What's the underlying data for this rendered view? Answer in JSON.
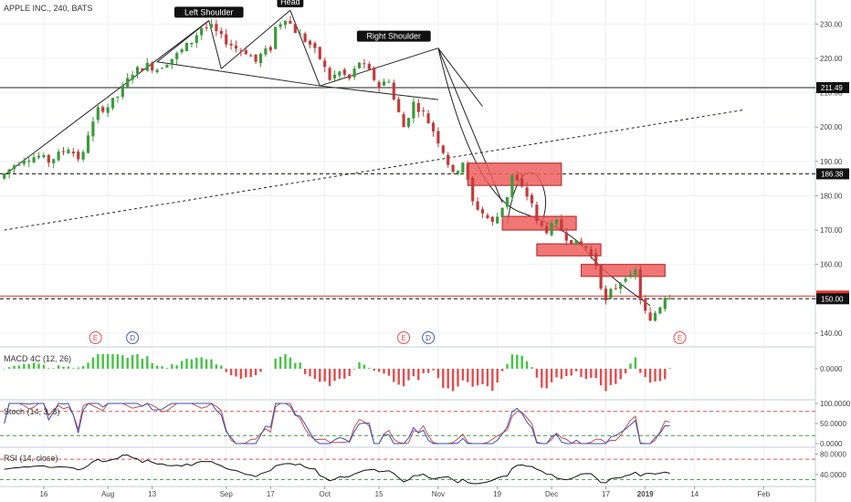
{
  "symbol_title": "APPLE INC., 240, BATS",
  "colors": {
    "up": "#3c9a3c",
    "down": "#c23b3b",
    "macd_up": "#43c443",
    "macd_down": "#e24c4c",
    "stoch_k": "#3b4fb3",
    "stoch_d": "#c05050",
    "zone": "#ee5e5e",
    "level": "#222222"
  },
  "chart_data": {
    "type": "candlestick",
    "ylim": [
      136,
      237
    ],
    "price_ticks": [
      "230.00",
      "220.00",
      "210.00",
      "200.00",
      "190.00",
      "180.00",
      "170.00",
      "160.00",
      "150.00",
      "140.00"
    ],
    "x_ticks": [
      "16",
      "Aug",
      "13",
      "Sep",
      "17",
      "Oct",
      "15",
      "Nov",
      "19",
      "Dec",
      "17",
      "2019",
      "14",
      "Feb"
    ],
    "price_path": [
      [
        0,
        185
      ],
      [
        3,
        189
      ],
      [
        5,
        191
      ],
      [
        8,
        191.5
      ],
      [
        10,
        190
      ],
      [
        14,
        194
      ],
      [
        16,
        191
      ],
      [
        17,
        192
      ],
      [
        17.6,
        197
      ],
      [
        19,
        201
      ],
      [
        20,
        205
      ],
      [
        22,
        206
      ],
      [
        24,
        209
      ],
      [
        27,
        216
      ],
      [
        30,
        218
      ],
      [
        32,
        217
      ],
      [
        36,
        221
      ],
      [
        39,
        225
      ],
      [
        41,
        229
      ],
      [
        43,
        229
      ],
      [
        45,
        226
      ],
      [
        48,
        223
      ],
      [
        50,
        222
      ],
      [
        52,
        219
      ],
      [
        53,
        221
      ],
      [
        55,
        223
      ],
      [
        56,
        229
      ],
      [
        58,
        232
      ],
      [
        60,
        228
      ],
      [
        63,
        224
      ],
      [
        65,
        220
      ],
      [
        67,
        214
      ],
      [
        69,
        216
      ],
      [
        71,
        214
      ],
      [
        73,
        219
      ],
      [
        75,
        216
      ],
      [
        77,
        212
      ],
      [
        79,
        214
      ],
      [
        80,
        208
      ],
      [
        82,
        200
      ],
      [
        84,
        207
      ],
      [
        86,
        204
      ],
      [
        88,
        199
      ],
      [
        90,
        193
      ],
      [
        92,
        186
      ],
      [
        94,
        190
      ],
      [
        96,
        178
      ],
      [
        98,
        175
      ],
      [
        100,
        172
      ],
      [
        101,
        174
      ],
      [
        103,
        180
      ],
      [
        104,
        186
      ],
      [
        106,
        182
      ],
      [
        108,
        178
      ],
      [
        109,
        172
      ],
      [
        111,
        170
      ],
      [
        113,
        172
      ],
      [
        115,
        168
      ],
      [
        117,
        166
      ],
      [
        119,
        165
      ],
      [
        121,
        160
      ],
      [
        122,
        154
      ],
      [
        123,
        149
      ],
      [
        124,
        152
      ],
      [
        126,
        155
      ],
      [
        127,
        157
      ],
      [
        128,
        156
      ],
      [
        129,
        158
      ],
      [
        130,
        150
      ],
      [
        131,
        146
      ],
      [
        132,
        143
      ],
      [
        133,
        146
      ],
      [
        134,
        148
      ],
      [
        135,
        151
      ]
    ],
    "patterns": [
      {
        "label": "Left Shoulder",
        "bar": 41.5,
        "price": 230
      },
      {
        "label": "Head",
        "bar": 58,
        "price": 233
      },
      {
        "label": "Right Shoulder",
        "bar": 79,
        "price": 223
      }
    ],
    "horizontal_levels": [
      {
        "value": 211.49,
        "label": "211.49",
        "style": "solid",
        "color": "#222222"
      },
      {
        "value": 186.38,
        "label": "186.38",
        "style": "dashed",
        "color": "#222222"
      },
      {
        "value": 150.8,
        "label": "150.80",
        "style": "solid",
        "color": "#e53935"
      },
      {
        "value": 150.0,
        "label": "150.00",
        "style": "dashed",
        "color": "#222222"
      }
    ],
    "zones": [
      {
        "bar0": 94,
        "bar1": 113,
        "top": 189.5,
        "bottom": 183
      },
      {
        "bar0": 101,
        "bar1": 116,
        "top": 174,
        "bottom": 170
      },
      {
        "bar0": 108,
        "bar1": 121,
        "top": 166,
        "bottom": 162.5
      },
      {
        "bar0": 117,
        "bar1": 134,
        "top": 160,
        "bottom": 156.5
      }
    ],
    "events": [
      {
        "label": "E",
        "bar": 18.5
      },
      {
        "label": "D",
        "bar": 26
      },
      {
        "label": "E",
        "bar": 81
      },
      {
        "label": "D",
        "bar": 86
      },
      {
        "label": "E",
        "bar": 137
      }
    ],
    "macd": {
      "name": "MACD 4C (12, 26)",
      "ticks": [
        "0.0000"
      ]
    },
    "stoch": {
      "name": "Stoch (14, 3, 3)",
      "ticks": [
        "100.0000",
        "50.0000",
        "0.0000"
      ]
    },
    "rsi": {
      "name": "RSI (14, close)",
      "ticks": [
        "80.0000",
        "40.0000"
      ]
    }
  }
}
